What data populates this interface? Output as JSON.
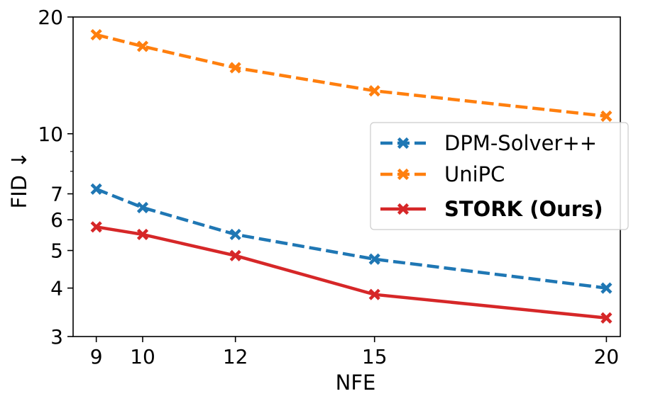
{
  "chart_data": {
    "type": "line",
    "xlabel": "NFE",
    "ylabel": "FID ↓",
    "y_scale": "log",
    "xlim": [
      8.5,
      20.3
    ],
    "ylim": [
      3,
      20
    ],
    "x_ticks": [
      9,
      10,
      12,
      15,
      20
    ],
    "y_ticks": [
      3,
      4,
      5,
      6,
      7,
      10,
      20
    ],
    "grid": false,
    "legend_position": "center-right",
    "x": [
      9,
      10,
      12,
      15,
      20
    ],
    "series": [
      {
        "name": "DPM-Solver++",
        "values": [
          7.2,
          6.45,
          5.5,
          4.75,
          4.0
        ],
        "color": "#1f77b4",
        "line_style": "dashed",
        "marker": "x",
        "bold_label": false
      },
      {
        "name": "UniPC",
        "values": [
          18.0,
          16.8,
          14.8,
          12.9,
          11.1
        ],
        "color": "#ff7f0e",
        "line_style": "dashed",
        "marker": "x",
        "bold_label": false
      },
      {
        "name": "STORK (Ours)",
        "values": [
          5.75,
          5.5,
          4.85,
          3.85,
          3.35
        ],
        "color": "#d62728",
        "line_style": "solid",
        "marker": "x",
        "bold_label": true
      }
    ]
  }
}
